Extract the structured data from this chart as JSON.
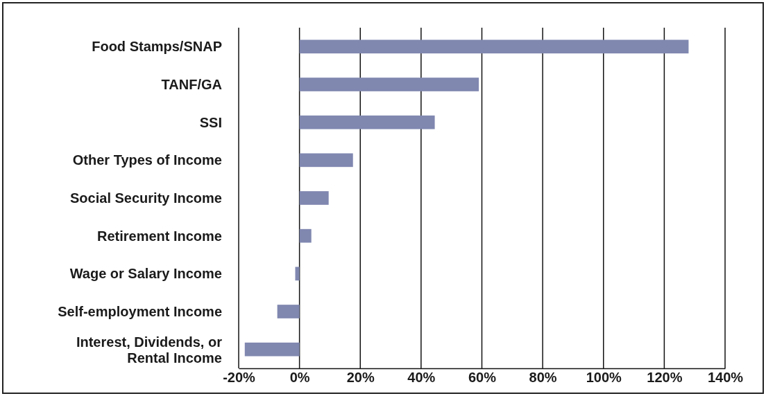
{
  "chart_data": {
    "type": "bar",
    "orientation": "horizontal",
    "categories": [
      "Food Stamps/SNAP",
      "TANF/GA",
      "SSI",
      "Other Types of Income",
      "Social Security Income",
      "Retirement Income",
      "Wage or Salary Income",
      "Self-employment Income",
      "Interest, Dividends, or Rental Income"
    ],
    "values": [
      128,
      59,
      44.5,
      17.6,
      9.6,
      3.9,
      -1.4,
      -7.3,
      -18
    ],
    "color": "#8088b0",
    "xlim": [
      -20,
      140
    ],
    "xticks": [
      {
        "value": -20,
        "label": "-20%"
      },
      {
        "value": 0,
        "label": "0%"
      },
      {
        "value": 20,
        "label": "20%"
      },
      {
        "value": 40,
        "label": "40%"
      },
      {
        "value": 60,
        "label": "60%"
      },
      {
        "value": 80,
        "label": "80%"
      },
      {
        "value": 100,
        "label": "100%"
      },
      {
        "value": 120,
        "label": "120%"
      },
      {
        "value": 140,
        "label": "140%"
      }
    ],
    "grid": "x"
  }
}
